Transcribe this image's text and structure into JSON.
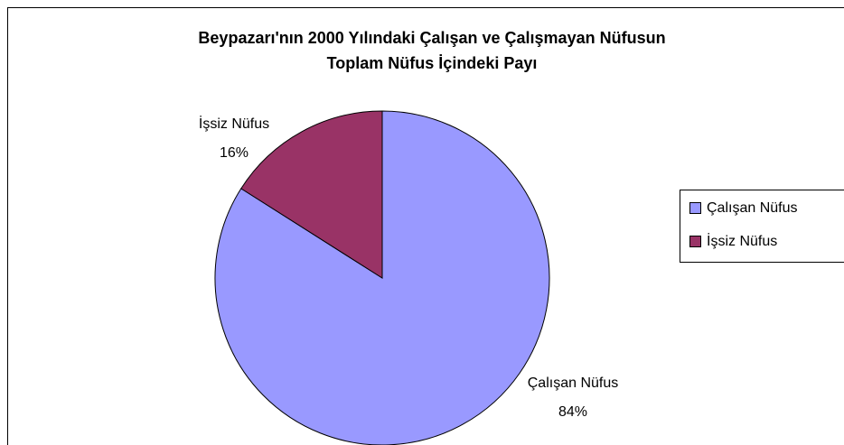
{
  "chart_data": {
    "type": "pie",
    "title": [
      "Beypazarı'nın 2000 Yılındaki Çalışan ve Çalışmayan Nüfusun",
      "Toplam Nüfus İçindeki Payı"
    ],
    "categories": [
      "Çalışan Nüfus",
      "İşsiz Nüfus"
    ],
    "values": [
      84,
      16
    ],
    "value_labels": [
      "84%",
      "16%"
    ],
    "colors": [
      "#9999ff",
      "#993366"
    ],
    "legend": "right"
  }
}
